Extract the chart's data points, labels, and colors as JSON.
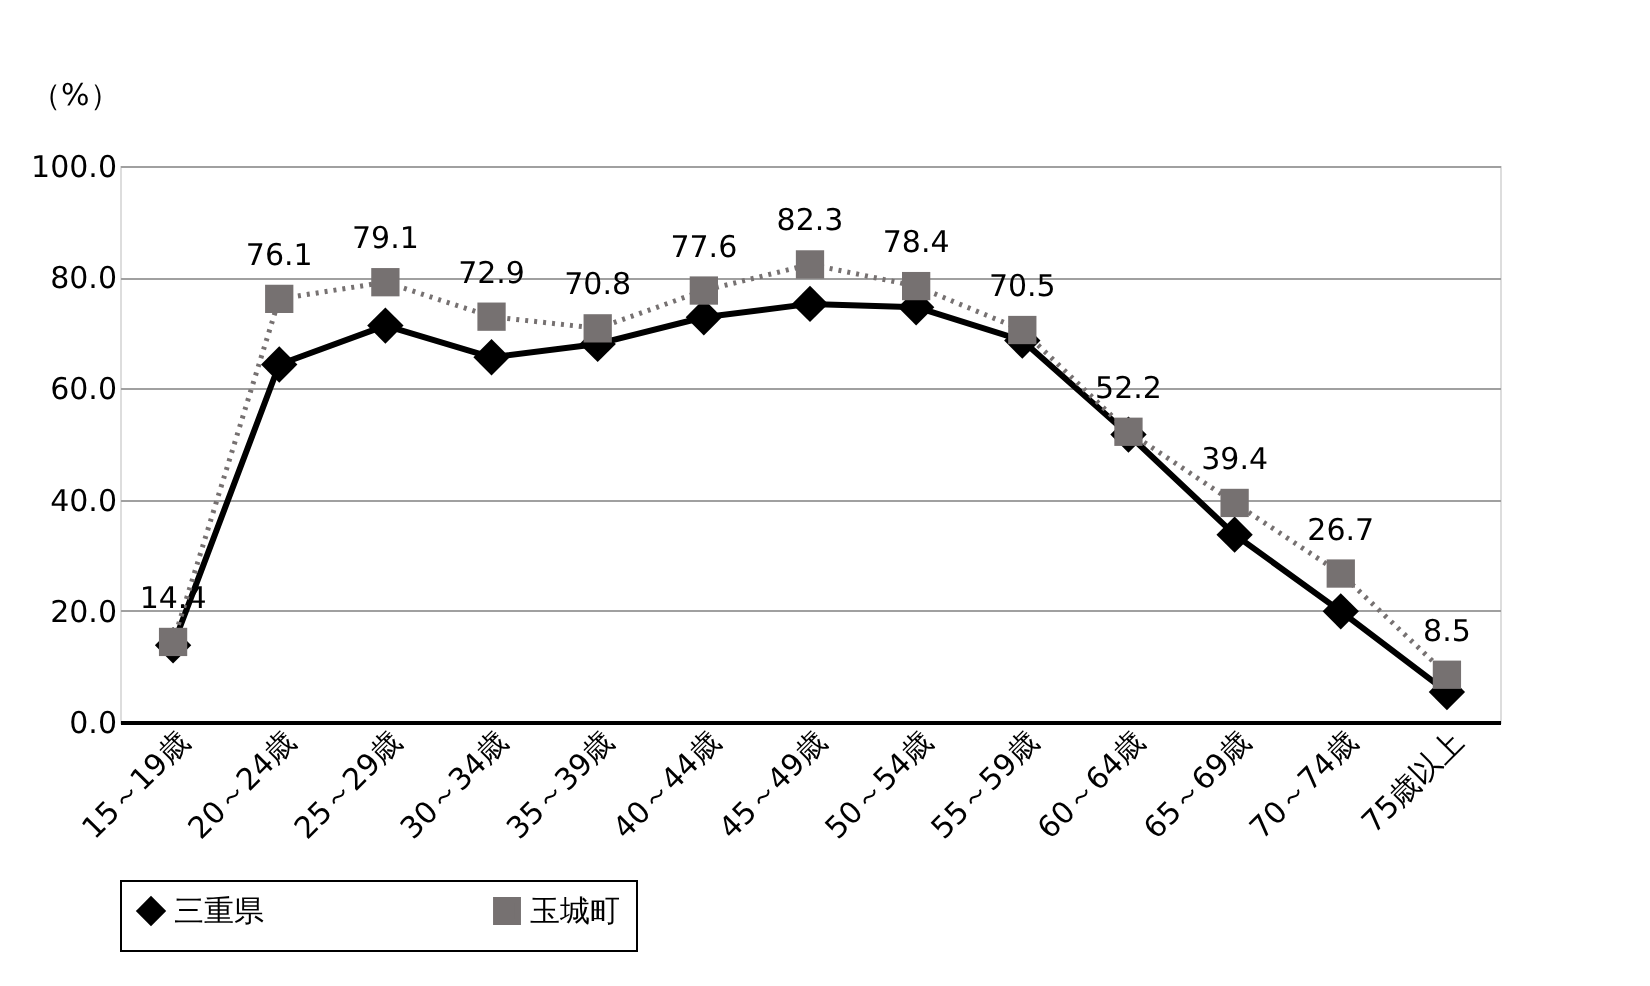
{
  "chart_data": {
    "type": "line",
    "ylabel": "（%）",
    "categories": [
      "15～19歳",
      "20～24歳",
      "25～29歳",
      "30～34歳",
      "35～39歳",
      "40～44歳",
      "45～49歳",
      "50～54歳",
      "55～59歳",
      "60～64歳",
      "65～69歳",
      "70～74歳",
      "75歳以上"
    ],
    "series": [
      {
        "name": "三重県",
        "color": "#000000",
        "marker": "diamond",
        "line_style": "solid",
        "values": [
          13.8,
          64.3,
          71.3,
          65.6,
          68.0,
          72.8,
          75.2,
          74.6,
          68.6,
          51.7,
          33.7,
          19.9,
          5.4
        ]
      },
      {
        "name": "玉城町",
        "color": "#767171",
        "marker": "square",
        "line_style": "dotted",
        "values": [
          14.4,
          76.1,
          79.1,
          72.9,
          70.8,
          77.6,
          82.3,
          78.4,
          70.5,
          52.2,
          39.4,
          26.7,
          8.5
        ],
        "value_labels": [
          "14.4",
          "76.1",
          "79.1",
          "72.9",
          "70.8",
          "77.6",
          "82.3",
          "78.4",
          "70.5",
          "52.2",
          "39.4",
          "26.7",
          "8.5"
        ]
      }
    ],
    "ylim": [
      0,
      100
    ],
    "yticks": [
      {
        "value": 0,
        "label": "0.0"
      },
      {
        "value": 20,
        "label": "20.0"
      },
      {
        "value": 40,
        "label": "40.0"
      },
      {
        "value": 60,
        "label": "60.0"
      },
      {
        "value": 80,
        "label": "80.0"
      },
      {
        "value": 100,
        "label": "100.0"
      }
    ],
    "grid": "y",
    "legend": "bottom"
  }
}
